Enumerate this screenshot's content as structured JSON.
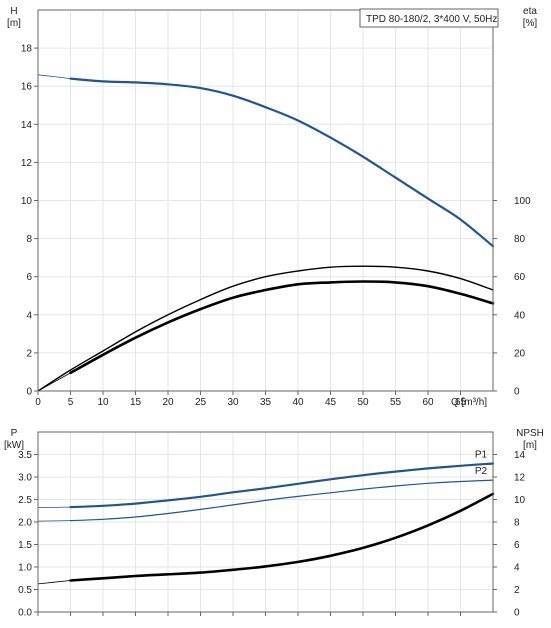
{
  "title_box": "TPD 80-180/2, 3*400 V, 50Hz",
  "colors": {
    "blue": "#1f5597",
    "black": "#000000",
    "frame": "#666666",
    "grid": "#e6e6e6"
  },
  "chart_data": [
    {
      "type": "line",
      "name": "head-efficiency",
      "x_axis": {
        "label": "Q [m³/h]",
        "min": 0,
        "max": 70,
        "ticks": [
          0,
          5,
          10,
          15,
          20,
          25,
          30,
          35,
          40,
          45,
          50,
          55,
          60,
          65
        ],
        "grid": true
      },
      "y_left": {
        "label_top": "H",
        "label_unit": "[m]",
        "min": 0,
        "max": 20,
        "ticks": [
          0,
          2,
          4,
          6,
          8,
          10,
          12,
          14,
          16,
          18
        ]
      },
      "y_right": {
        "label_top": "eta",
        "label_unit": "[%]",
        "min": 0,
        "max": 200,
        "ticks": [
          0,
          20,
          40,
          60,
          80,
          100
        ]
      },
      "series": [
        {
          "axis": "left",
          "color": "#1f5597",
          "width": 2.2,
          "x": [
            5,
            10,
            15,
            20,
            25,
            30,
            35,
            40,
            45,
            50,
            55,
            60,
            65,
            70
          ],
          "y": [
            16.4,
            16.25,
            16.2,
            16.1,
            15.9,
            15.5,
            14.9,
            14.2,
            13.3,
            12.3,
            11.2,
            10.1,
            9.0,
            7.6
          ]
        },
        {
          "axis": "left",
          "color": "#1f5597",
          "width": 0.8,
          "x": [
            0,
            5
          ],
          "y": [
            16.6,
            16.4
          ]
        },
        {
          "axis": "right",
          "color": "#000000",
          "width": 1.4,
          "x": [
            0,
            5,
            10,
            15,
            20,
            25,
            30,
            35,
            40,
            45,
            50,
            55,
            60,
            65,
            70
          ],
          "y": [
            0,
            11,
            21,
            31,
            40,
            48,
            55,
            60,
            63,
            65,
            65.5,
            65,
            63,
            59,
            53
          ]
        },
        {
          "axis": "right",
          "color": "#000000",
          "width": 2.6,
          "x": [
            5,
            10,
            15,
            20,
            25,
            30,
            35,
            40,
            45,
            50,
            55,
            60,
            65,
            70
          ],
          "y": [
            9.5,
            19,
            28,
            36,
            43,
            49,
            53,
            56,
            57,
            57.5,
            57,
            55,
            51,
            46
          ]
        },
        {
          "axis": "right",
          "color": "#000000",
          "width": 0.8,
          "x": [
            0,
            5
          ],
          "y": [
            0,
            9.5
          ]
        }
      ]
    },
    {
      "type": "line",
      "name": "power-npsh",
      "x_axis": {
        "min": 0,
        "max": 70,
        "ticks": [
          0,
          5,
          10,
          15,
          20,
          25,
          30,
          35,
          40,
          45,
          50,
          55,
          60,
          65
        ],
        "grid": true
      },
      "y_left": {
        "label_top": "P",
        "label_unit": "[kW]",
        "min": 0,
        "max": 4,
        "ticks": [
          0,
          0.5,
          1.0,
          1.5,
          2.0,
          2.5,
          3.0,
          3.5
        ]
      },
      "y_right": {
        "label_top": "NPSH",
        "label_unit": "[m]",
        "min": 0,
        "max": 16,
        "ticks": [
          0,
          2,
          4,
          6,
          8,
          10,
          12,
          14
        ]
      },
      "series": [
        {
          "axis": "left",
          "color": "#1f5597",
          "width": 2.2,
          "label": "P1",
          "x": [
            5,
            10,
            15,
            20,
            25,
            30,
            35,
            40,
            45,
            50,
            55,
            60,
            65,
            70
          ],
          "y": [
            2.33,
            2.36,
            2.41,
            2.48,
            2.56,
            2.66,
            2.75,
            2.85,
            2.95,
            3.04,
            3.12,
            3.19,
            3.25,
            3.3
          ]
        },
        {
          "axis": "left",
          "color": "#1f5597",
          "width": 0.8,
          "x": [
            0,
            5
          ],
          "y": [
            2.32,
            2.33
          ]
        },
        {
          "axis": "left",
          "color": "#1f5597",
          "width": 1.2,
          "label": "P2",
          "x": [
            5,
            10,
            15,
            20,
            25,
            30,
            35,
            40,
            45,
            50,
            55,
            60,
            65,
            70
          ],
          "y": [
            2.03,
            2.06,
            2.11,
            2.19,
            2.28,
            2.38,
            2.48,
            2.57,
            2.65,
            2.73,
            2.8,
            2.86,
            2.9,
            2.93
          ]
        },
        {
          "axis": "left",
          "color": "#1f5597",
          "width": 0.8,
          "x": [
            0,
            5
          ],
          "y": [
            2.02,
            2.03
          ]
        },
        {
          "axis": "right",
          "color": "#000000",
          "width": 2.6,
          "x": [
            5,
            10,
            15,
            20,
            25,
            30,
            35,
            40,
            45,
            50,
            55,
            60,
            65,
            70
          ],
          "y": [
            2.8,
            3.0,
            3.2,
            3.35,
            3.5,
            3.75,
            4.05,
            4.45,
            5.0,
            5.7,
            6.6,
            7.7,
            9.0,
            10.5
          ]
        },
        {
          "axis": "right",
          "color": "#000000",
          "width": 0.8,
          "x": [
            0,
            5
          ],
          "y": [
            2.5,
            2.8
          ]
        }
      ]
    }
  ]
}
